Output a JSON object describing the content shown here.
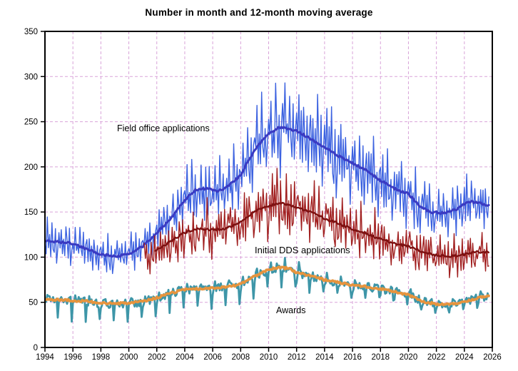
{
  "chart_data": {
    "type": "line",
    "title": "Number in month and 12-month moving average",
    "description": "Monthly values (noisy lines) with 12-month moving averages (smooth thick lines)",
    "x_axis": {
      "min": 1994,
      "max": 2026,
      "tick_step": 2,
      "ticks": [
        "1994",
        "1996",
        "1998",
        "2000",
        "2002",
        "2004",
        "2006",
        "2008",
        "2010",
        "2012",
        "2014",
        "2016",
        "2018",
        "2020",
        "2022",
        "2024",
        "2026"
      ]
    },
    "y_axis": {
      "min": 0,
      "max": 350,
      "tick_step": 50,
      "ticks": [
        "0",
        "50",
        "100",
        "150",
        "200",
        "250",
        "300",
        "350"
      ]
    },
    "gridlines": {
      "style": "dashed",
      "color": "#D9A3D9",
      "vertical_every_years": 2,
      "horizontal_every": 50
    },
    "axis_color": "#000000",
    "legend_position": "inline-annotations",
    "series": [
      {
        "name": "Field office applications",
        "monthly_color": "#3C62E0",
        "ma_color": "#3A3AC2",
        "start_year": 1994.0,
        "ma_start_year": 1994.0,
        "end_year": 2025.8,
        "ma_trend": {
          "years": [
            1994,
            1995,
            1996,
            1997,
            1998,
            1999,
            2000,
            2001,
            2002,
            2003,
            2004,
            2004.8,
            2005.6,
            2006.3,
            2007,
            2008,
            2009,
            2010,
            2010.8,
            2011.5,
            2012,
            2013,
            2014,
            2015,
            2016,
            2017,
            2018,
            2019,
            2020,
            2020.7,
            2021.5,
            2022.5,
            2023.5,
            2024.3,
            2025,
            2025.8
          ],
          "values": [
            118,
            117,
            115,
            109,
            103,
            101,
            103,
            112,
            127,
            143,
            163,
            175,
            176,
            173,
            177,
            191,
            219,
            237,
            244,
            242,
            240,
            231,
            222,
            212,
            204,
            196,
            185,
            176,
            170,
            158,
            150,
            149,
            153,
            162,
            160,
            157
          ]
        },
        "monthly_render": {
          "seed": 7,
          "noise_frac": 0.07,
          "seasonal_frac": [
            0.05,
            -0.06,
            0.16,
            -0.09,
            0.06,
            -0.13,
            0.18,
            -0.04,
            -0.11,
            0.09,
            -0.17,
            -0.02
          ]
        },
        "monthly_stroke": 1.4,
        "ma_stroke": 3
      },
      {
        "name": "Initial DDS applications",
        "monthly_color": "#A12020",
        "ma_color": "#7C1010",
        "start_year": 2001.1,
        "ma_start_year": 2001.9,
        "end_year": 2025.8,
        "ma_trend": {
          "years": [
            2001.9,
            2002.5,
            2003,
            2004,
            2005,
            2006,
            2007,
            2008,
            2009,
            2010,
            2010.8,
            2011.5,
            2012,
            2013,
            2014,
            2015,
            2016,
            2017,
            2018,
            2019,
            2020,
            2021,
            2022,
            2023,
            2024,
            2025,
            2025.8
          ],
          "values": [
            107,
            112,
            118,
            127,
            132,
            130,
            132,
            139,
            151,
            157,
            160,
            158,
            155,
            150,
            143,
            137,
            131,
            126,
            120,
            115,
            112,
            106,
            102,
            101,
            103,
            106,
            105
          ]
        },
        "monthly_render": {
          "seed": 13,
          "noise_frac": 0.1,
          "seasonal_frac": [
            0.07,
            -0.05,
            0.15,
            -0.1,
            0.06,
            -0.14,
            0.17,
            -0.06,
            -0.12,
            0.08,
            -0.16,
            -0.03
          ]
        },
        "monthly_stroke": 1.4,
        "ma_stroke": 2.4
      },
      {
        "name": "Awards",
        "monthly_color": "#3E96A8",
        "ma_color": "#E6943E",
        "start_year": 1994.0,
        "ma_start_year": 1994.0,
        "end_year": 2025.8,
        "ma_trend": {
          "years": [
            1994,
            1995,
            1996,
            1997,
            1998,
            1999,
            2000,
            2001,
            2002,
            2003,
            2004,
            2005,
            2006,
            2007,
            2008,
            2009,
            2010,
            2010.8,
            2011.5,
            2012,
            2013,
            2014,
            2015,
            2016,
            2017,
            2018,
            2019,
            2020,
            2021,
            2022,
            2023,
            2024,
            2025,
            2025.8
          ],
          "values": [
            53,
            53,
            52,
            51,
            49,
            48.5,
            49,
            51,
            55,
            60,
            64,
            65,
            66,
            67,
            70,
            79,
            86,
            89,
            87,
            83,
            79,
            75,
            72,
            69,
            67,
            65,
            62,
            58,
            51,
            48,
            47.5,
            50,
            55,
            57
          ]
        },
        "monthly_render": {
          "seed": 21,
          "noise_abs": 5,
          "annual_dip": true,
          "dip_frac_start": 0.46,
          "dip_frac_decay_per_year": 0.013,
          "dip_frac_min": 0.18,
          "spring_bump_frac": 0.1
        },
        "monthly_stroke": 2.8,
        "ma_stroke": 3.6
      }
    ],
    "annotations": [
      {
        "text": "Field office applications",
        "series": "Field office applications"
      },
      {
        "text": "Initial DDS applications",
        "series": "Initial DDS applications"
      },
      {
        "text": "Awards",
        "series": "Awards"
      }
    ]
  }
}
